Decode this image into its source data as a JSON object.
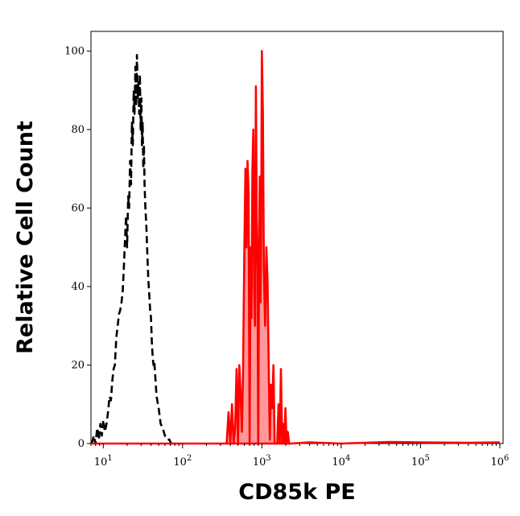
{
  "chart_data": {
    "type": "area",
    "xlabel": "CD85k PE",
    "ylabel": "Relative Cell Count",
    "xscale": "log",
    "xlim": [
      7,
      1100000.0
    ],
    "ylim": [
      0,
      105
    ],
    "x_ticks": [
      {
        "value": 10,
        "base": "10",
        "exp": "1"
      },
      {
        "value": 100,
        "base": "10",
        "exp": "2"
      },
      {
        "value": 1000,
        "base": "10",
        "exp": "3"
      },
      {
        "value": 10000,
        "base": "10",
        "exp": "4"
      },
      {
        "value": 100000,
        "base": "10",
        "exp": "5"
      },
      {
        "value": 1000000,
        "base": "10",
        "exp": "6"
      }
    ],
    "y_ticks": [
      0,
      20,
      40,
      60,
      80,
      100
    ],
    "series": [
      {
        "style": "dashed",
        "color": "#000000",
        "fill": "none",
        "x": [
          7.2,
          7.6,
          8.0,
          8.4,
          8.8,
          9.2,
          9.6,
          10.0,
          10.5,
          11.0,
          11.5,
          12.0,
          12.5,
          13.0,
          13.5,
          14.0,
          14.6,
          15.2,
          15.8,
          16.4,
          17.0,
          17.6,
          18.2,
          18.8,
          19.4,
          20.0,
          20.6,
          21.2,
          21.8,
          22.4,
          23.0,
          23.6,
          24.2,
          24.8,
          25.4,
          26.0,
          26.6,
          27.2,
          27.8,
          28.4,
          29.0,
          29.6,
          30.2,
          30.8,
          31.4,
          32.0,
          32.6,
          33.2,
          34.0,
          35.0,
          36.0,
          37.0,
          38.0,
          39.0,
          40.0,
          41.0,
          42.0,
          43.0,
          44.0,
          45.0,
          47.0,
          50.0,
          53.0,
          56.0,
          60.0,
          64.0,
          68.0,
          72.0,
          76.0,
          80.0
        ],
        "values": [
          0,
          2,
          0,
          4,
          1,
          5,
          2,
          6,
          3,
          5,
          8,
          12,
          11,
          16,
          19,
          20,
          27,
          30,
          33,
          34,
          36,
          39,
          45,
          52,
          58,
          50,
          63,
          60,
          72,
          66,
          82,
          76,
          90,
          84,
          96,
          86,
          99,
          88,
          92,
          84,
          94,
          80,
          88,
          76,
          82,
          70,
          76,
          66,
          60,
          55,
          48,
          42,
          38,
          34,
          32,
          26,
          22,
          20,
          21,
          18,
          12,
          9,
          5,
          4,
          2,
          1,
          1,
          0,
          0,
          0
        ]
      },
      {
        "style": "solid",
        "color": "#ff0000",
        "fill": "#ff9999",
        "x": [
          360,
          380,
          400,
          420,
          440,
          460,
          480,
          500,
          520,
          540,
          560,
          580,
          600,
          620,
          640,
          660,
          680,
          700,
          720,
          740,
          760,
          780,
          800,
          820,
          840,
          860,
          880,
          900,
          920,
          940,
          960,
          980,
          1000,
          1030,
          1060,
          1100,
          1140,
          1180,
          1220,
          1260,
          1300,
          1350,
          1400,
          1450,
          1500,
          1560,
          1620,
          1680,
          1740,
          1800,
          1860,
          1920,
          1980,
          2050,
          2120,
          2200,
          2300
        ],
        "values": [
          0,
          8,
          0,
          10,
          0,
          4,
          19,
          0,
          20,
          12,
          3,
          19,
          48,
          70,
          50,
          72,
          64,
          0,
          50,
          32,
          70,
          80,
          40,
          30,
          91,
          58,
          44,
          0,
          48,
          68,
          36,
          55,
          100,
          84,
          44,
          30,
          50,
          41,
          20,
          1,
          15,
          9,
          20,
          0,
          0,
          0,
          10,
          0,
          19,
          0,
          5,
          0,
          9,
          0,
          3,
          0,
          0
        ]
      },
      {
        "style": "solid",
        "color": "#ff0000",
        "fill": "none",
        "x": [
          7.2,
          2300,
          4000,
          10000,
          40000,
          100000,
          400000,
          1000000
        ],
        "values": [
          0,
          0,
          0.3,
          0,
          0.4,
          0.3,
          0.2,
          0.3
        ]
      }
    ]
  }
}
